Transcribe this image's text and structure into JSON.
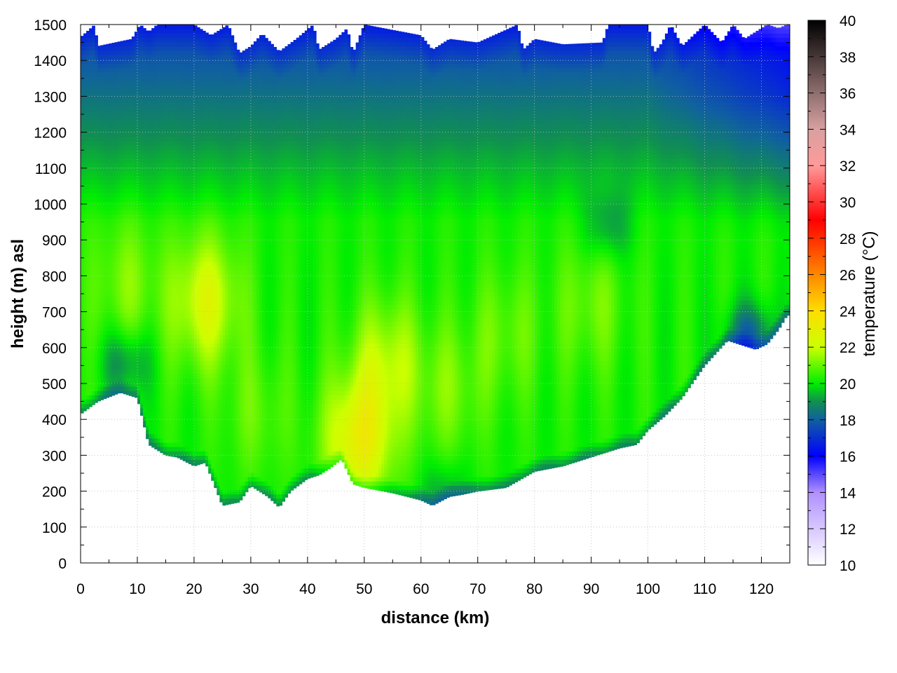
{
  "chart_data": {
    "type": "heatmap",
    "title": "",
    "xlabel": "distance (km)",
    "ylabel": "height (m) asl",
    "colorbar_label": "temperature (°C)",
    "xlim": [
      0,
      125
    ],
    "ylim": [
      0,
      1500
    ],
    "clim": [
      10,
      40
    ],
    "x_ticks": [
      0,
      10,
      20,
      30,
      40,
      50,
      60,
      70,
      80,
      90,
      100,
      110,
      120
    ],
    "y_ticks": [
      0,
      100,
      200,
      300,
      400,
      500,
      600,
      700,
      800,
      900,
      1000,
      1100,
      1200,
      1300,
      1400,
      1500
    ],
    "cb_ticks": [
      10,
      12,
      14,
      16,
      18,
      20,
      22,
      24,
      26,
      28,
      30,
      32,
      34,
      36,
      38,
      40
    ],
    "grid": true,
    "colormap": [
      {
        "v": 10,
        "c": "#ffffff"
      },
      {
        "v": 14,
        "c": "#b090ff"
      },
      {
        "v": 16,
        "c": "#0000ff"
      },
      {
        "v": 18,
        "c": "#1060a0"
      },
      {
        "v": 19,
        "c": "#109050"
      },
      {
        "v": 20,
        "c": "#00ee00"
      },
      {
        "v": 22,
        "c": "#ccff00"
      },
      {
        "v": 24,
        "c": "#ffdd00"
      },
      {
        "v": 26,
        "c": "#ff8800"
      },
      {
        "v": 29,
        "c": "#ff0000"
      },
      {
        "v": 32,
        "c": "#ff9a9a"
      },
      {
        "v": 34,
        "c": "#d8a0a0"
      },
      {
        "v": 36,
        "c": "#8f6f6f"
      },
      {
        "v": 40,
        "c": "#000000"
      }
    ],
    "terrain_bottom": [
      [
        0,
        415
      ],
      [
        3,
        450
      ],
      [
        7,
        475
      ],
      [
        10,
        460
      ],
      [
        12,
        330
      ],
      [
        15,
        300
      ],
      [
        17,
        295
      ],
      [
        20,
        270
      ],
      [
        22,
        280
      ],
      [
        25,
        160
      ],
      [
        28,
        170
      ],
      [
        30,
        215
      ],
      [
        33,
        185
      ],
      [
        35,
        155
      ],
      [
        37,
        200
      ],
      [
        40,
        235
      ],
      [
        42,
        245
      ],
      [
        44,
        265
      ],
      [
        46,
        290
      ],
      [
        48,
        220
      ],
      [
        50,
        210
      ],
      [
        55,
        195
      ],
      [
        60,
        175
      ],
      [
        62,
        160
      ],
      [
        65,
        185
      ],
      [
        67,
        190
      ],
      [
        70,
        200
      ],
      [
        75,
        210
      ],
      [
        80,
        255
      ],
      [
        85,
        270
      ],
      [
        90,
        295
      ],
      [
        95,
        320
      ],
      [
        98,
        330
      ],
      [
        100,
        370
      ],
      [
        103,
        410
      ],
      [
        106,
        460
      ],
      [
        110,
        550
      ],
      [
        114,
        620
      ],
      [
        117,
        605
      ],
      [
        119,
        595
      ],
      [
        121,
        610
      ],
      [
        123,
        650
      ],
      [
        124.5,
        690
      ]
    ],
    "data_top": [
      [
        0,
        1465
      ],
      [
        2.5,
        1500
      ],
      [
        3,
        1440
      ],
      [
        6,
        1450
      ],
      [
        9,
        1460
      ],
      [
        10.5,
        1500
      ],
      [
        12,
        1480
      ],
      [
        13.5,
        1500
      ],
      [
        20,
        1500
      ],
      [
        23,
        1470
      ],
      [
        26,
        1500
      ],
      [
        28,
        1420
      ],
      [
        30,
        1440
      ],
      [
        32,
        1475
      ],
      [
        35,
        1425
      ],
      [
        38,
        1460
      ],
      [
        41,
        1500
      ],
      [
        42,
        1430
      ],
      [
        45,
        1460
      ],
      [
        47,
        1490
      ],
      [
        48,
        1420
      ],
      [
        50,
        1500
      ],
      [
        60,
        1470
      ],
      [
        62,
        1430
      ],
      [
        65,
        1460
      ],
      [
        70,
        1450
      ],
      [
        77,
        1500
      ],
      [
        78,
        1430
      ],
      [
        80,
        1460
      ],
      [
        85,
        1445
      ],
      [
        92,
        1450
      ],
      [
        93,
        1500
      ],
      [
        100,
        1500
      ],
      [
        101,
        1420
      ],
      [
        102.5,
        1450
      ],
      [
        104,
        1500
      ],
      [
        106,
        1440
      ],
      [
        108,
        1470
      ],
      [
        110,
        1500
      ],
      [
        113,
        1450
      ],
      [
        115,
        1500
      ],
      [
        117,
        1460
      ],
      [
        119,
        1480
      ],
      [
        121,
        1500
      ],
      [
        123,
        1490
      ],
      [
        124.5,
        1500
      ]
    ],
    "warm_spots": [
      [
        22,
        730,
        2.2
      ],
      [
        49,
        340,
        2.8
      ],
      [
        54,
        560,
        1.6
      ],
      [
        8,
        780,
        1.0
      ],
      [
        65,
        480,
        0.9
      ],
      [
        31,
        420,
        0.7
      ],
      [
        75,
        640,
        0.8
      ],
      [
        90,
        720,
        0.9
      ]
    ],
    "cool_spots": [
      [
        8,
        560,
        1.4
      ],
      [
        93,
        940,
        1.2
      ],
      [
        64,
        190,
        1.0
      ],
      [
        118,
        630,
        2.2
      ]
    ]
  }
}
